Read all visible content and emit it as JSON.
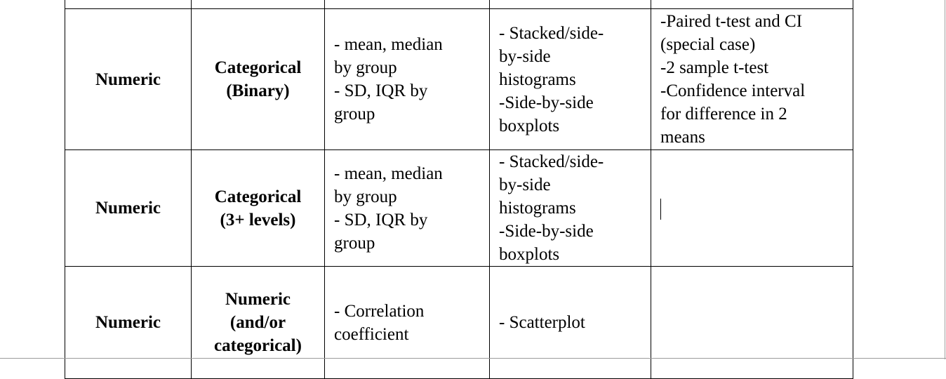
{
  "rows": [
    {
      "response": "Numeric",
      "explanatory": "Categorical\n(Binary)",
      "summaries": "- mean, median\nby group\n- SD, IQR by\ngroup",
      "graphs": "- Stacked/side-\nby-side\nhistograms\n-Side-by-side\nboxplots",
      "inference": "-Paired t-test and CI\n(special case)\n-2 sample t-test\n-Confidence interval\nfor difference in 2\nmeans"
    },
    {
      "response": "Numeric",
      "explanatory": "Categorical\n(3+ levels)",
      "summaries": "- mean, median\nby group\n- SD, IQR by\ngroup",
      "graphs": "- Stacked/side-\nby-side\nhistograms\n-Side-by-side\nboxplots",
      "inference": ""
    },
    {
      "response": "Numeric",
      "explanatory": "Numeric\n(and/or\ncategorical)",
      "summaries": "- Correlation\ncoefficient",
      "graphs": "- Scatterplot",
      "inference": ""
    }
  ]
}
